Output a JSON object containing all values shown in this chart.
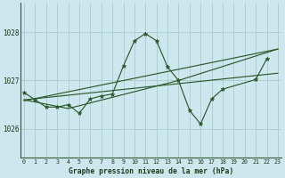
{
  "bg_color": "#cce8ee",
  "grid_color": "#aacccc",
  "line_color": "#2d5a2d",
  "xlabel": "Graphe pression niveau de la mer (hPa)",
  "xlabel_color": "#1a3a1a",
  "xticks": [
    0,
    1,
    2,
    3,
    4,
    5,
    6,
    7,
    8,
    9,
    10,
    11,
    12,
    13,
    14,
    15,
    16,
    17,
    18,
    19,
    20,
    21,
    22,
    23
  ],
  "ylim": [
    1025.4,
    1028.6
  ],
  "yticks": [
    1026,
    1027,
    1028
  ],
  "series": [
    {
      "x": [
        0,
        1,
        2,
        3,
        4,
        5,
        6,
        7,
        8,
        9,
        10,
        11,
        12,
        13,
        14,
        15,
        16,
        17,
        18,
        21,
        22
      ],
      "y": [
        1026.75,
        1026.6,
        1026.45,
        1026.45,
        1026.5,
        1026.32,
        1026.62,
        1026.68,
        1026.72,
        1027.3,
        1027.82,
        1027.97,
        1027.82,
        1027.28,
        1027.0,
        1026.38,
        1026.1,
        1026.62,
        1026.82,
        1027.02,
        1027.45
      ]
    },
    {
      "x": [
        0,
        23
      ],
      "y": [
        1026.6,
        1027.15
      ]
    },
    {
      "x": [
        0,
        23
      ],
      "y": [
        1026.58,
        1027.65
      ]
    },
    {
      "x": [
        0,
        4,
        14,
        23
      ],
      "y": [
        1026.6,
        1026.42,
        1027.0,
        1027.65
      ]
    }
  ],
  "marker_series": [
    0
  ],
  "figsize": [
    3.2,
    2.0
  ],
  "dpi": 100
}
